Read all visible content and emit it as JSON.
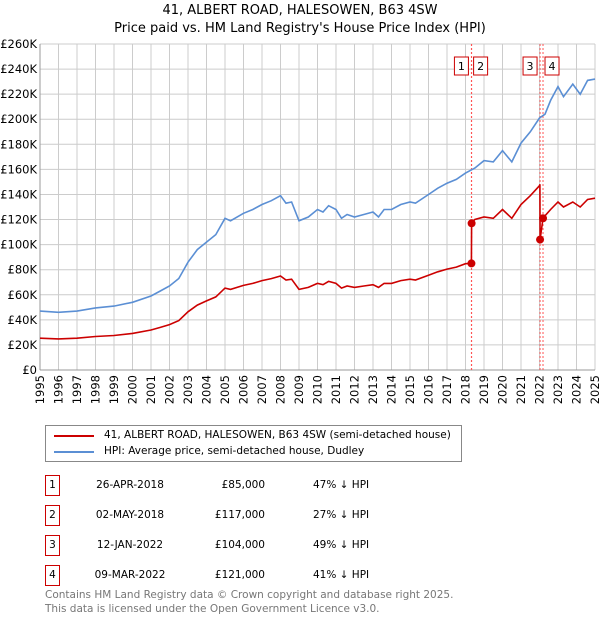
{
  "chart_data": {
    "type": "line",
    "title": "41, ALBERT ROAD, HALESOWEN, B63 4SW",
    "subtitle": "Price paid vs. HM Land Registry's House Price Index (HPI)",
    "xlabel": "",
    "ylabel": "",
    "xlim": [
      1995,
      2025
    ],
    "ylim": [
      0,
      260000
    ],
    "yticks": [
      0,
      20000,
      40000,
      60000,
      80000,
      100000,
      120000,
      140000,
      160000,
      180000,
      200000,
      220000,
      240000,
      260000
    ],
    "ytick_labels": [
      "£0",
      "£20K",
      "£40K",
      "£60K",
      "£80K",
      "£100K",
      "£120K",
      "£140K",
      "£160K",
      "£180K",
      "£200K",
      "£220K",
      "£240K",
      "£260K"
    ],
    "xticks": [
      "1995",
      "1996",
      "1997",
      "1998",
      "1999",
      "2000",
      "2001",
      "2002",
      "2003",
      "2004",
      "2005",
      "2006",
      "2007",
      "2008",
      "2009",
      "2010",
      "2011",
      "2012",
      "2013",
      "2014",
      "2015",
      "2016",
      "2017",
      "2018",
      "2019",
      "2020",
      "2021",
      "2022",
      "2023",
      "2024",
      "2025"
    ],
    "grid": true,
    "series": [
      {
        "name": "41, ALBERT ROAD, HALESOWEN, B63 4SW (semi-detached house)",
        "color": "#cc0000",
        "x": [
          1995,
          1996,
          1997,
          1998,
          1999,
          2000,
          2001,
          2001.5,
          2002,
          2002.5,
          2003,
          2003.5,
          2004,
          2004.5,
          2005,
          2005.3,
          2006,
          2006.5,
          2007,
          2007.5,
          2008,
          2008.3,
          2008.6,
          2009,
          2009.5,
          2010,
          2010.3,
          2010.6,
          2011,
          2011.3,
          2011.6,
          2012,
          2012.5,
          2013,
          2013.3,
          2013.6,
          2014,
          2014.5,
          2015,
          2015.3,
          2016,
          2016.5,
          2017,
          2017.5,
          2018,
          2018.32,
          2018.33,
          2018.5,
          2019,
          2019.5,
          2020,
          2020.5,
          2021,
          2021.5,
          2022,
          2022.02,
          2022.03,
          2022.19,
          2022.3,
          2022.6,
          2023,
          2023.3,
          2023.8,
          2024.2,
          2024.6,
          2025
        ],
        "y": [
          25400,
          24800,
          25400,
          26700,
          27500,
          29200,
          31900,
          34000,
          36200,
          39400,
          46400,
          51800,
          55100,
          58300,
          65300,
          64300,
          67500,
          69100,
          71300,
          72900,
          75000,
          71800,
          72400,
          64300,
          65900,
          69100,
          68000,
          70700,
          69100,
          65300,
          67000,
          65900,
          67000,
          68000,
          65900,
          69100,
          69100,
          71300,
          72400,
          71800,
          75600,
          78300,
          80500,
          82100,
          84800,
          85000,
          117000,
          120000,
          122000,
          121000,
          128000,
          121000,
          132000,
          139000,
          147000,
          148000,
          104000,
          121000,
          123000,
          128000,
          134000,
          130000,
          134000,
          130000,
          136000,
          137000
        ]
      },
      {
        "name": "HPI: Average price, semi-detached house, Dudley",
        "color": "#5b8fd4",
        "x": [
          1995,
          1996,
          1997,
          1998,
          1999,
          2000,
          2001,
          2001.5,
          2002,
          2002.5,
          2003,
          2003.5,
          2004,
          2004.5,
          2005,
          2005.3,
          2006,
          2006.5,
          2007,
          2007.5,
          2008,
          2008.3,
          2008.6,
          2009,
          2009.5,
          2010,
          2010.3,
          2010.6,
          2011,
          2011.3,
          2011.6,
          2012,
          2012.5,
          2013,
          2013.3,
          2013.6,
          2014,
          2014.5,
          2015,
          2015.3,
          2016,
          2016.5,
          2017,
          2017.5,
          2018,
          2018.5,
          2019,
          2019.5,
          2020,
          2020.5,
          2021,
          2021.5,
          2022,
          2022.3,
          2022.6,
          2023,
          2023.3,
          2023.8,
          2024.2,
          2024.6,
          2025
        ],
        "y": [
          47000,
          46000,
          47000,
          49500,
          51000,
          54000,
          59000,
          63000,
          67000,
          73000,
          86000,
          96000,
          102000,
          108000,
          121000,
          119000,
          125000,
          128000,
          132000,
          135000,
          139000,
          133000,
          134000,
          119000,
          122000,
          128000,
          126000,
          131000,
          128000,
          121000,
          124000,
          122000,
          124000,
          126000,
          122000,
          128000,
          128000,
          132000,
          134000,
          133000,
          140000,
          145000,
          149000,
          152000,
          157000,
          161000,
          167000,
          166000,
          175000,
          166000,
          181000,
          190000,
          201000,
          204000,
          215000,
          226000,
          218000,
          228000,
          220000,
          231000,
          232000
        ]
      }
    ],
    "transactions": [
      {
        "label": "1",
        "x": 2018.32,
        "y": 85000
      },
      {
        "label": "2",
        "x": 2018.33,
        "y": 117000
      },
      {
        "label": "3",
        "x": 2022.03,
        "y": 104000
      },
      {
        "label": "4",
        "x": 2022.19,
        "y": 121000
      }
    ]
  },
  "legend": {
    "red": "41, ALBERT ROAD, HALESOWEN, B63 4SW (semi-detached house)",
    "blue": "HPI: Average price, semi-detached house, Dudley"
  },
  "table": [
    {
      "num": "1",
      "date": "26-APR-2018",
      "price": "£85,000",
      "hpi": "47% ↓ HPI"
    },
    {
      "num": "2",
      "date": "02-MAY-2018",
      "price": "£117,000",
      "hpi": "27% ↓ HPI"
    },
    {
      "num": "3",
      "date": "12-JAN-2022",
      "price": "£104,000",
      "hpi": "49% ↓ HPI"
    },
    {
      "num": "4",
      "date": "09-MAR-2022",
      "price": "£121,000",
      "hpi": "41% ↓ HPI"
    }
  ],
  "footer": {
    "line1": "Contains HM Land Registry data © Crown copyright and database right 2025.",
    "line2": "This data is licensed under the Open Government Licence v3.0."
  }
}
